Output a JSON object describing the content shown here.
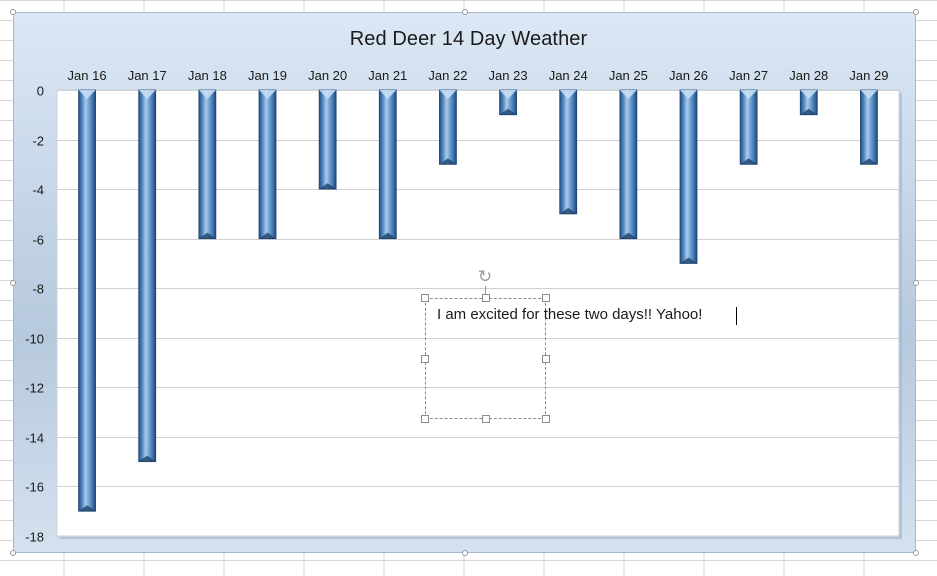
{
  "chart_data": {
    "type": "bar",
    "title": "Red Deer 14 Day Weather",
    "xlabel": "",
    "ylabel": "",
    "categories": [
      "Jan 16",
      "Jan 17",
      "Jan 18",
      "Jan 19",
      "Jan 20",
      "Jan 21",
      "Jan 22",
      "Jan 23",
      "Jan 24",
      "Jan 25",
      "Jan 26",
      "Jan 27",
      "Jan 28",
      "Jan 29"
    ],
    "series": [
      {
        "values": [
          -17,
          -15,
          -6,
          -6,
          -4,
          -6,
          -3,
          -1,
          -5,
          -6,
          -7,
          -3,
          -1,
          -3
        ]
      }
    ],
    "ylim": [
      -18,
      0
    ],
    "yticks": [
      0,
      -2,
      -4,
      -6,
      -8,
      -10,
      -12,
      -14,
      -16,
      -18
    ],
    "x_axis_position": "top",
    "grid": true,
    "legend": "none",
    "bar_color": "#4f86c0",
    "annotation": "I am excited for these two days!! Yahoo!"
  }
}
